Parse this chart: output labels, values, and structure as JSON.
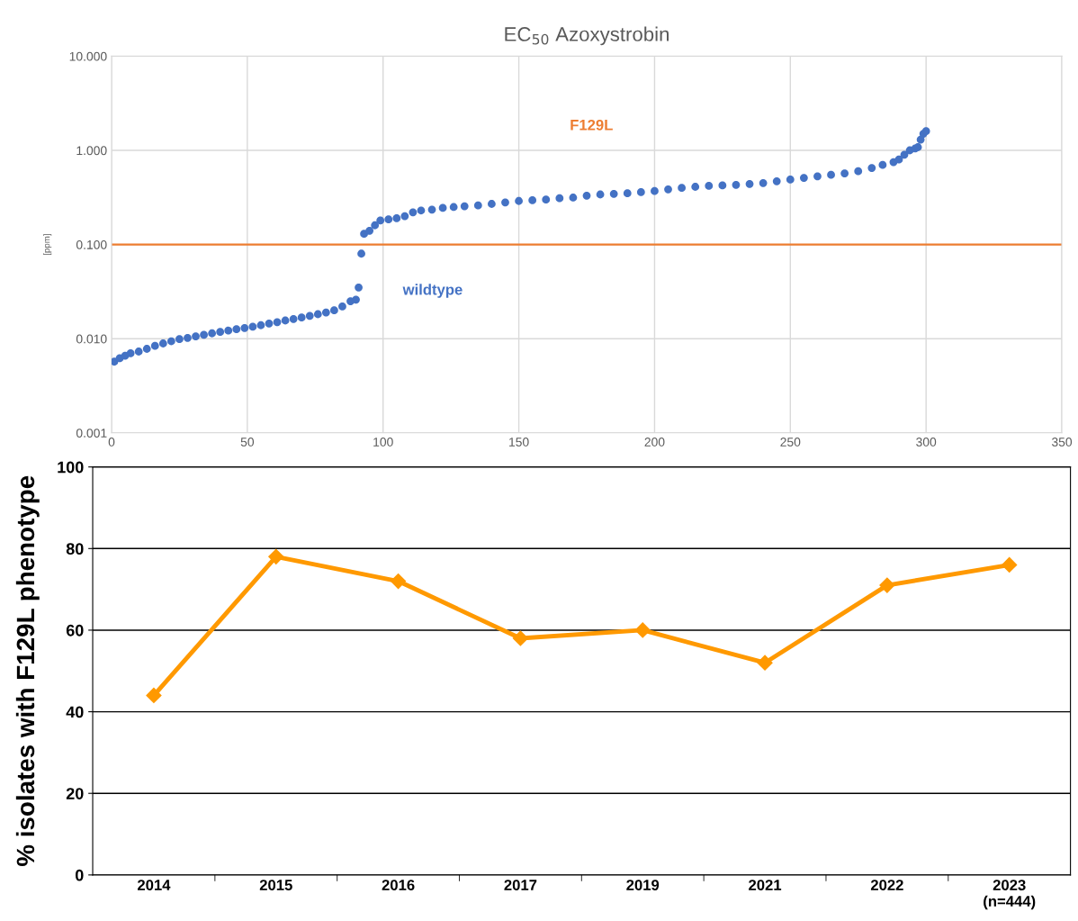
{
  "chart_data": [
    {
      "type": "scatter",
      "title": "EC$_{50}$ Azoxystrobin",
      "ylabel": "[ppm]",
      "log": "y",
      "grid": true,
      "marker": "circle",
      "xlim": [
        0,
        350
      ],
      "xticks": [
        0,
        50,
        100,
        150,
        200,
        250,
        300,
        350
      ],
      "ylim": [
        0.001,
        10
      ],
      "yticks": [
        {
          "value": 0.001,
          "label": "0.001"
        },
        {
          "value": 0.01,
          "label": "0.010"
        },
        {
          "value": 0.1,
          "label": "0.100"
        },
        {
          "value": 1,
          "label": "1.000"
        },
        {
          "value": 10,
          "label": "10.000"
        }
      ],
      "series": [
        {
          "color": "#4472c4",
          "x": [
            1,
            3,
            5,
            7,
            10,
            13,
            16,
            19,
            22,
            25,
            28,
            31,
            34,
            37,
            40,
            43,
            46,
            49,
            52,
            55,
            58,
            61,
            64,
            67,
            70,
            73,
            76,
            79,
            82,
            85,
            88,
            90,
            91,
            92,
            93,
            95,
            97,
            99,
            102,
            105,
            108,
            111,
            114,
            118,
            122,
            126,
            130,
            135,
            140,
            145,
            150,
            155,
            160,
            165,
            170,
            175,
            180,
            185,
            190,
            195,
            200,
            205,
            210,
            215,
            220,
            225,
            230,
            235,
            240,
            245,
            250,
            255,
            260,
            265,
            270,
            275,
            280,
            284,
            288,
            290,
            292,
            294,
            296,
            297,
            298,
            299,
            300
          ],
          "values": [
            0.0057,
            0.0062,
            0.0066,
            0.007,
            0.0073,
            0.0078,
            0.0084,
            0.0089,
            0.0094,
            0.0099,
            0.0102,
            0.0106,
            0.011,
            0.0114,
            0.0118,
            0.0122,
            0.0126,
            0.013,
            0.0134,
            0.0139,
            0.0145,
            0.015,
            0.0156,
            0.0162,
            0.0168,
            0.0175,
            0.0182,
            0.019,
            0.02,
            0.022,
            0.025,
            0.026,
            0.035,
            0.08,
            0.13,
            0.14,
            0.16,
            0.18,
            0.185,
            0.19,
            0.2,
            0.22,
            0.23,
            0.235,
            0.245,
            0.25,
            0.255,
            0.26,
            0.27,
            0.28,
            0.29,
            0.295,
            0.3,
            0.31,
            0.315,
            0.33,
            0.34,
            0.345,
            0.35,
            0.36,
            0.37,
            0.385,
            0.4,
            0.41,
            0.42,
            0.425,
            0.43,
            0.44,
            0.45,
            0.47,
            0.49,
            0.51,
            0.53,
            0.55,
            0.57,
            0.6,
            0.65,
            0.7,
            0.75,
            0.8,
            0.9,
            1.0,
            1.05,
            1.08,
            1.3,
            1.5,
            1.6
          ]
        }
      ],
      "ref_lines": [
        {
          "axis": "y",
          "value": 0.1,
          "color": "#ed7d31"
        }
      ],
      "annotations": [
        "F129L",
        "wildtype"
      ]
    },
    {
      "type": "line",
      "ylabel": "% isolates with F129L phenotype",
      "grid": "y",
      "marker": "diamond",
      "line_style": "solid",
      "categories": [
        "2014",
        "2015",
        "2016",
        "2017",
        "2019",
        "2021",
        "2022",
        "2023\n(n=444)"
      ],
      "ylim": [
        0,
        100
      ],
      "yticks": [
        0,
        20,
        40,
        60,
        80,
        100
      ],
      "series": [
        {
          "color": "#ff9900",
          "values": [
            44,
            78,
            72,
            58,
            60,
            52,
            71,
            76
          ]
        }
      ]
    }
  ]
}
